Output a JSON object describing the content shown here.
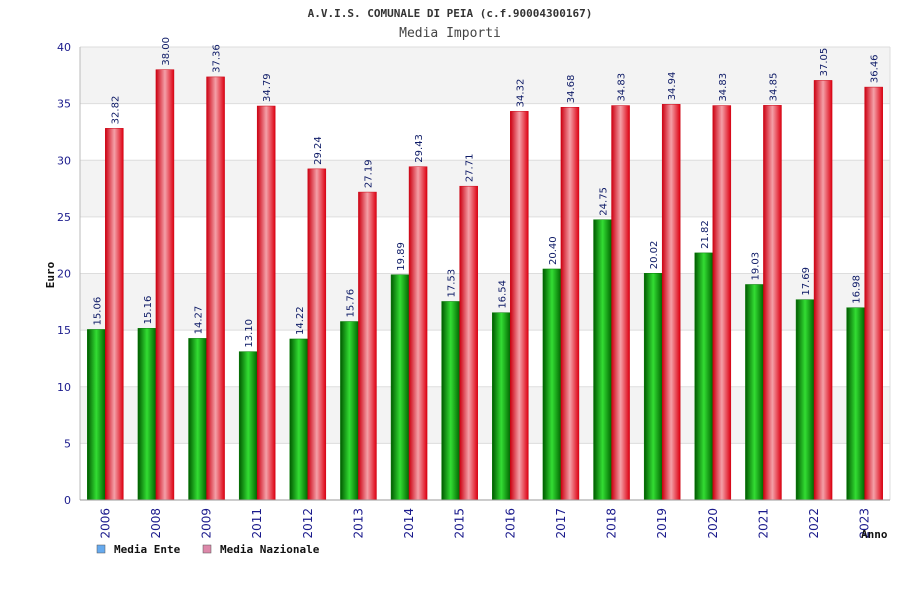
{
  "chart_data": {
    "type": "bar",
    "title": "A.V.I.S. COMUNALE DI PEIA (c.f.90004300167)",
    "subtitle": "Media Importi",
    "xlabel": "Anno",
    "ylabel": "Euro",
    "ylim": [
      0,
      40
    ],
    "yticks": [
      0,
      5,
      10,
      15,
      20,
      25,
      30,
      35,
      40
    ],
    "grid": true,
    "legend_position": "bottom-left",
    "categories": [
      "2006",
      "2008",
      "2009",
      "2011",
      "2012",
      "2013",
      "2014",
      "2015",
      "2016",
      "2017",
      "2018",
      "2019",
      "2020",
      "2021",
      "2022",
      "2023"
    ],
    "series": [
      {
        "name": "Media Ente",
        "color": "#11aa11",
        "legend_color": "#66aaee",
        "values": [
          15.06,
          15.16,
          14.27,
          13.1,
          14.22,
          15.76,
          19.89,
          17.53,
          16.54,
          20.4,
          24.75,
          20.02,
          21.82,
          19.03,
          17.69,
          16.98
        ],
        "labels": [
          "15.06",
          "15.16",
          "14.27",
          "13.10",
          "14.22",
          "15.76",
          "19.89",
          "17.53",
          "16.54",
          "20.40",
          "24.75",
          "20.02",
          "21.82",
          "19.03",
          "17.69",
          "16.98"
        ]
      },
      {
        "name": "Media Nazionale",
        "color": "#ee1122",
        "legend_color": "#dd88aa",
        "values": [
          32.82,
          38.0,
          37.36,
          34.79,
          29.24,
          27.19,
          29.43,
          27.71,
          34.32,
          34.68,
          34.83,
          34.94,
          34.83,
          34.85,
          37.05,
          36.46
        ],
        "labels": [
          "32.82",
          "38.00",
          "37.36",
          "34.79",
          "29.24",
          "27.19",
          "29.43",
          "27.71",
          "34.32",
          "34.68",
          "34.83",
          "34.94",
          "34.83",
          "34.85",
          "37.05",
          "36.46"
        ]
      }
    ]
  }
}
